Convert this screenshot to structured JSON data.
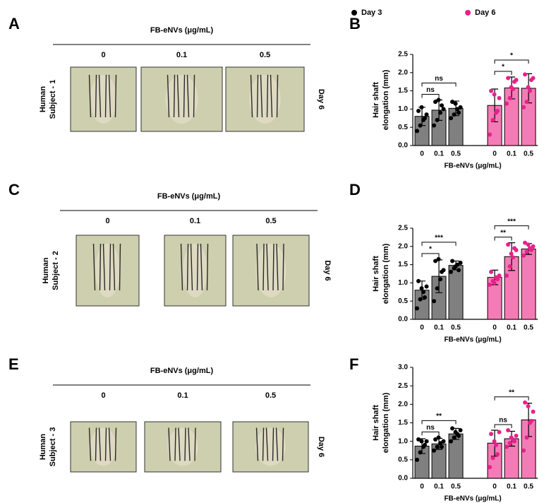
{
  "photos": [
    {
      "letter": "A",
      "title": "FB-eNVs (μg/mL)",
      "columns": [
        "0",
        "0.1",
        "0.5"
      ],
      "subject": [
        "Human",
        "Subject - 1"
      ],
      "day": "Day 6"
    },
    {
      "letter": "C",
      "title": "FB-eNVs (μg/mL)",
      "columns": [
        "0",
        "0.1",
        "0.5"
      ],
      "subject": [
        "Human",
        "Subject - 2"
      ],
      "day": "Day 6"
    },
    {
      "letter": "E",
      "title": "FB-eNVs (μg/mL)",
      "columns": [
        "0",
        "0.1",
        "0.5"
      ],
      "subject": [
        "Human",
        "Subject - 3"
      ],
      "day": "Day 6"
    }
  ],
  "chart_data": [
    {
      "type": "bar",
      "panel": "B",
      "legend": "top",
      "y_label": [
        "Hair shaft",
        "elongation (mm)"
      ],
      "x_label": "FB-eNVs (μg/mL)",
      "categories": [
        "0",
        "0.1",
        "0.5",
        "0",
        "0.1",
        "0.5"
      ],
      "ylim": [
        0,
        2.5
      ],
      "yticks": [
        {
          "value": 0,
          "label": "0.0"
        },
        0.5,
        {
          "value": 1,
          "label": "1.0"
        },
        1.5,
        {
          "value": 2,
          "label": "2.0"
        },
        2.5
      ],
      "series": [
        {
          "name": "Day 3",
          "color": "#000000",
          "bar_color": "#808080",
          "values": [
            0.8,
            0.97,
            1.02,
            null,
            null,
            null
          ],
          "errors": [
            0.25,
            0.28,
            0.2,
            null,
            null,
            null
          ],
          "points": [
            [
              0.4,
              0.55,
              0.7,
              0.85,
              0.95,
              1.05,
              0.75
            ],
            [
              0.55,
              0.7,
              0.9,
              1.0,
              1.2,
              1.25,
              1.1
            ],
            [
              0.75,
              0.85,
              1.0,
              1.05,
              1.2,
              1.15,
              0.9
            ],
            null,
            null,
            null
          ]
        },
        {
          "name": "Day 6",
          "color": "#e8218b",
          "bar_color": "#f47bb5",
          "values": [
            null,
            null,
            null,
            1.1,
            1.58,
            1.57
          ],
          "errors": [
            null,
            null,
            null,
            0.45,
            0.3,
            0.4
          ],
          "points": [
            null,
            null,
            null,
            [
              0.3,
              0.7,
              0.9,
              1.3,
              1.5,
              1.4,
              0.95
            ],
            [
              1.15,
              1.3,
              1.55,
              1.8,
              1.85,
              1.6,
              1.75
            ],
            [
              1.05,
              1.2,
              1.5,
              1.85,
              1.95,
              1.6,
              1.8
            ]
          ]
        }
      ],
      "annotations": [
        {
          "text": "ns",
          "pair": [
            0,
            1
          ]
        },
        {
          "text": "ns",
          "pair": [
            0,
            2
          ]
        },
        {
          "text": "*",
          "pair": [
            3,
            4
          ]
        },
        {
          "text": "*",
          "pair": [
            3,
            5
          ]
        }
      ]
    },
    {
      "type": "bar",
      "panel": "D",
      "y_label": [
        "Hair shaft",
        "elongation (mm)"
      ],
      "x_label": "FB-eNVs (μg/mL)",
      "categories": [
        "0",
        "0.1",
        "0.5",
        "0",
        "0.1",
        "0.5"
      ],
      "ylim": [
        0,
        2.5
      ],
      "yticks": [
        {
          "value": 0,
          "label": "0.0"
        },
        0.5,
        {
          "value": 1,
          "label": "1.0"
        },
        1.5,
        {
          "value": 2,
          "label": "2.0"
        },
        2.5
      ],
      "series": [
        {
          "color": "#000000",
          "bar_color": "#808080",
          "values": [
            0.8,
            1.18,
            1.48,
            null,
            null,
            null
          ],
          "errors": [
            0.25,
            0.45,
            0.12,
            null,
            null,
            null
          ],
          "points": [
            [
              0.3,
              0.55,
              0.75,
              0.9,
              1.05,
              0.85,
              0.6
            ],
            [
              0.5,
              0.85,
              1.1,
              1.35,
              1.6,
              1.65,
              1.3
            ],
            [
              1.3,
              1.4,
              1.5,
              1.55,
              1.6,
              1.45,
              1.35
            ],
            null,
            null,
            null
          ]
        },
        {
          "color": "#e8218b",
          "bar_color": "#f47bb5",
          "values": [
            null,
            null,
            null,
            1.15,
            1.72,
            1.93
          ],
          "errors": [
            null,
            null,
            null,
            0.2,
            0.38,
            0.15
          ],
          "points": [
            null,
            null,
            null,
            [
              0.95,
              1.05,
              1.15,
              1.2,
              1.3,
              1.0,
              1.1
            ],
            [
              1.2,
              1.45,
              1.7,
              1.9,
              2.05,
              1.8,
              1.95
            ],
            [
              1.75,
              1.85,
              1.95,
              2.0,
              2.1,
              2.05,
              1.9
            ]
          ]
        }
      ],
      "annotations": [
        {
          "text": "*",
          "pair": [
            0,
            1
          ]
        },
        {
          "text": "***",
          "pair": [
            0,
            2
          ]
        },
        {
          "text": "**",
          "pair": [
            3,
            4
          ]
        },
        {
          "text": "***",
          "pair": [
            3,
            5
          ]
        }
      ]
    },
    {
      "type": "bar",
      "panel": "F",
      "y_label": [
        "Hair shaft",
        "elongation (mm)"
      ],
      "x_label": "FB-eNVs (μg/mL)",
      "categories": [
        "0",
        "0.1",
        "0.5",
        "0",
        "0.1",
        "0.5"
      ],
      "ylim": [
        0,
        3
      ],
      "yticks": [
        {
          "value": 0,
          "label": "0.0"
        },
        0.5,
        {
          "value": 1,
          "label": "1.0"
        },
        1.5,
        {
          "value": 2,
          "label": "2.0"
        },
        2.5,
        {
          "value": 3,
          "label": "3.0"
        }
      ],
      "series": [
        {
          "color": "#000000",
          "bar_color": "#808080",
          "values": [
            0.87,
            0.93,
            1.2,
            null,
            null,
            null
          ],
          "errors": [
            0.2,
            0.15,
            0.15,
            null,
            null,
            null
          ],
          "points": [
            [
              0.5,
              0.7,
              0.85,
              1.0,
              1.05,
              1.0,
              0.9
            ],
            [
              0.75,
              0.85,
              0.95,
              1.0,
              1.05,
              1.1,
              0.85
            ],
            [
              1.0,
              1.1,
              1.2,
              1.3,
              1.35,
              1.25,
              1.15
            ],
            null,
            null,
            null
          ]
        },
        {
          "color": "#e8218b",
          "bar_color": "#f47bb5",
          "values": [
            null,
            null,
            null,
            0.95,
            1.07,
            1.58
          ],
          "errors": [
            null,
            null,
            null,
            0.35,
            0.2,
            0.45
          ],
          "points": [
            null,
            null,
            null,
            [
              0.3,
              0.55,
              0.9,
              1.25,
              1.2,
              1.0,
              0.65
            ],
            [
              0.85,
              0.95,
              1.05,
              1.15,
              1.3,
              1.1,
              1.0
            ],
            [
              0.75,
              1.1,
              1.5,
              1.8,
              2.05,
              1.95,
              1.55
            ]
          ]
        }
      ],
      "annotations": [
        {
          "text": "ns",
          "pair": [
            0,
            1
          ]
        },
        {
          "text": "**",
          "pair": [
            0,
            2
          ]
        },
        {
          "text": "ns",
          "pair": [
            3,
            4
          ]
        },
        {
          "text": "**",
          "pair": [
            3,
            5
          ]
        }
      ]
    }
  ]
}
